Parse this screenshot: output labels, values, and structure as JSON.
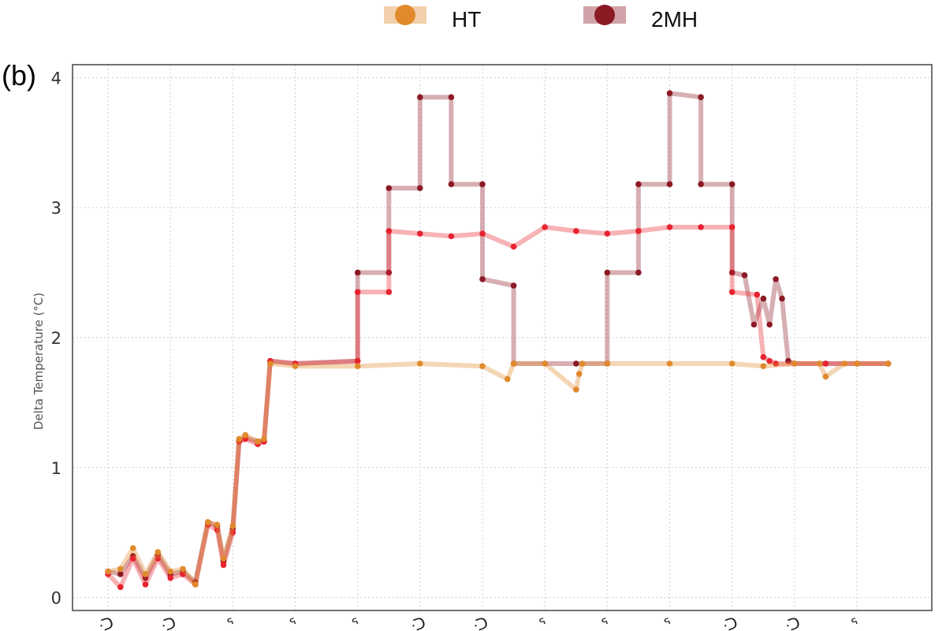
{
  "panel_label": "(b)",
  "colors": {
    "HT": "#e08a2c",
    "2MH": "#8b1a25",
    "red": "#e8232f",
    "frame": "#444444",
    "grid": "#cfcfcf"
  },
  "chart_data": {
    "type": "line",
    "title": "",
    "xlabel": "",
    "ylabel": "Delta Temperature (°C)",
    "ylim": [
      -0.1,
      4.1
    ],
    "xlim": [
      0,
      13.2
    ],
    "yticks": [
      0,
      1,
      2,
      3,
      4
    ],
    "x_categories": [
      "0",
      "1",
      "2",
      "3",
      "4",
      "5",
      "6",
      "7",
      "8",
      "9",
      "10",
      "11",
      "12"
    ],
    "x_tick_labels": [
      "ᑝ",
      "ᑝ",
      "ᕐ",
      "ᕐ",
      "ᕐ",
      "ᑝ",
      "ᑝ",
      "ᕐ",
      "ᕐ",
      "ᕐ",
      "ᑝ",
      "ᑝ",
      "ᕐ"
    ],
    "grid": true,
    "legend": {
      "position": "top",
      "entries": [
        {
          "label": "HT",
          "color": "#e08a2c"
        },
        {
          "label": "2MH",
          "color": "#8b1a25"
        }
      ]
    },
    "series": [
      {
        "name": "HT",
        "color": "#e08a2c",
        "x": [
          0,
          0.2,
          0.4,
          0.6,
          0.8,
          1.0,
          1.2,
          1.4,
          1.6,
          1.75,
          1.85,
          2.0,
          2.1,
          2.2,
          2.4,
          2.5,
          2.6,
          3.0,
          4.0,
          5.0,
          6.0,
          6.4,
          6.5,
          7.0,
          7.5,
          7.55,
          7.6,
          8.0,
          9.0,
          10.0,
          10.5,
          11.0,
          11.4,
          11.5,
          11.8,
          12.0,
          12.5
        ],
        "y": [
          0.2,
          0.22,
          0.38,
          0.18,
          0.35,
          0.2,
          0.22,
          0.1,
          0.58,
          0.56,
          0.3,
          0.55,
          1.22,
          1.25,
          1.2,
          1.22,
          1.8,
          1.78,
          1.78,
          1.8,
          1.78,
          1.68,
          1.8,
          1.8,
          1.6,
          1.72,
          1.8,
          1.8,
          1.8,
          1.8,
          1.78,
          1.8,
          1.8,
          1.7,
          1.8,
          1.8,
          1.8
        ]
      },
      {
        "name": "2MH",
        "color": "#8b1a25",
        "x": [
          0,
          0.2,
          0.4,
          0.6,
          0.8,
          1.0,
          1.2,
          1.4,
          1.6,
          1.75,
          1.85,
          2.0,
          2.1,
          2.2,
          2.4,
          2.5,
          2.6,
          3.0,
          4.0,
          4.0,
          4.5,
          4.5,
          5.0,
          5.0,
          5.5,
          5.5,
          6.0,
          6.0,
          6.5,
          6.5,
          7.0,
          7.5,
          8.0,
          8.0,
          8.5,
          8.5,
          9.0,
          9.0,
          9.5,
          9.5,
          10.0,
          10.0,
          10.2,
          10.35,
          10.5,
          10.6,
          10.7,
          10.8,
          10.9,
          11.0,
          11.5,
          12.0,
          12.5
        ],
        "y": [
          0.2,
          0.18,
          0.32,
          0.15,
          0.33,
          0.18,
          0.2,
          0.12,
          0.58,
          0.55,
          0.28,
          0.53,
          1.2,
          1.23,
          1.2,
          1.2,
          1.82,
          1.8,
          1.82,
          2.5,
          2.5,
          3.15,
          3.15,
          3.85,
          3.85,
          3.18,
          3.18,
          2.45,
          2.4,
          1.8,
          1.8,
          1.8,
          1.8,
          2.5,
          2.5,
          3.18,
          3.18,
          3.88,
          3.85,
          3.18,
          3.18,
          2.5,
          2.48,
          2.1,
          2.3,
          2.1,
          2.45,
          2.3,
          1.82,
          1.8,
          1.8,
          1.8,
          1.8
        ]
      },
      {
        "name": "",
        "color": "#e8232f",
        "x": [
          0,
          0.2,
          0.4,
          0.6,
          0.8,
          1.0,
          1.2,
          1.4,
          1.6,
          1.75,
          1.85,
          2.0,
          2.1,
          2.2,
          2.4,
          2.5,
          2.6,
          3.0,
          4.0,
          4.0,
          4.5,
          4.5,
          5.0,
          5.5,
          6.0,
          6.5,
          7.0,
          7.5,
          8.0,
          8.5,
          9.0,
          9.5,
          10.0,
          10.0,
          10.4,
          10.5,
          10.6,
          10.7,
          11.0,
          11.5,
          12.0,
          12.5
        ],
        "y": [
          0.18,
          0.08,
          0.3,
          0.1,
          0.3,
          0.15,
          0.18,
          0.1,
          0.56,
          0.52,
          0.25,
          0.5,
          1.2,
          1.22,
          1.18,
          1.2,
          1.82,
          1.8,
          1.82,
          2.35,
          2.35,
          2.82,
          2.8,
          2.78,
          2.8,
          2.7,
          2.85,
          2.82,
          2.8,
          2.82,
          2.85,
          2.85,
          2.85,
          2.35,
          2.33,
          1.85,
          1.82,
          1.8,
          1.8,
          1.8,
          1.8,
          1.8
        ]
      }
    ]
  }
}
